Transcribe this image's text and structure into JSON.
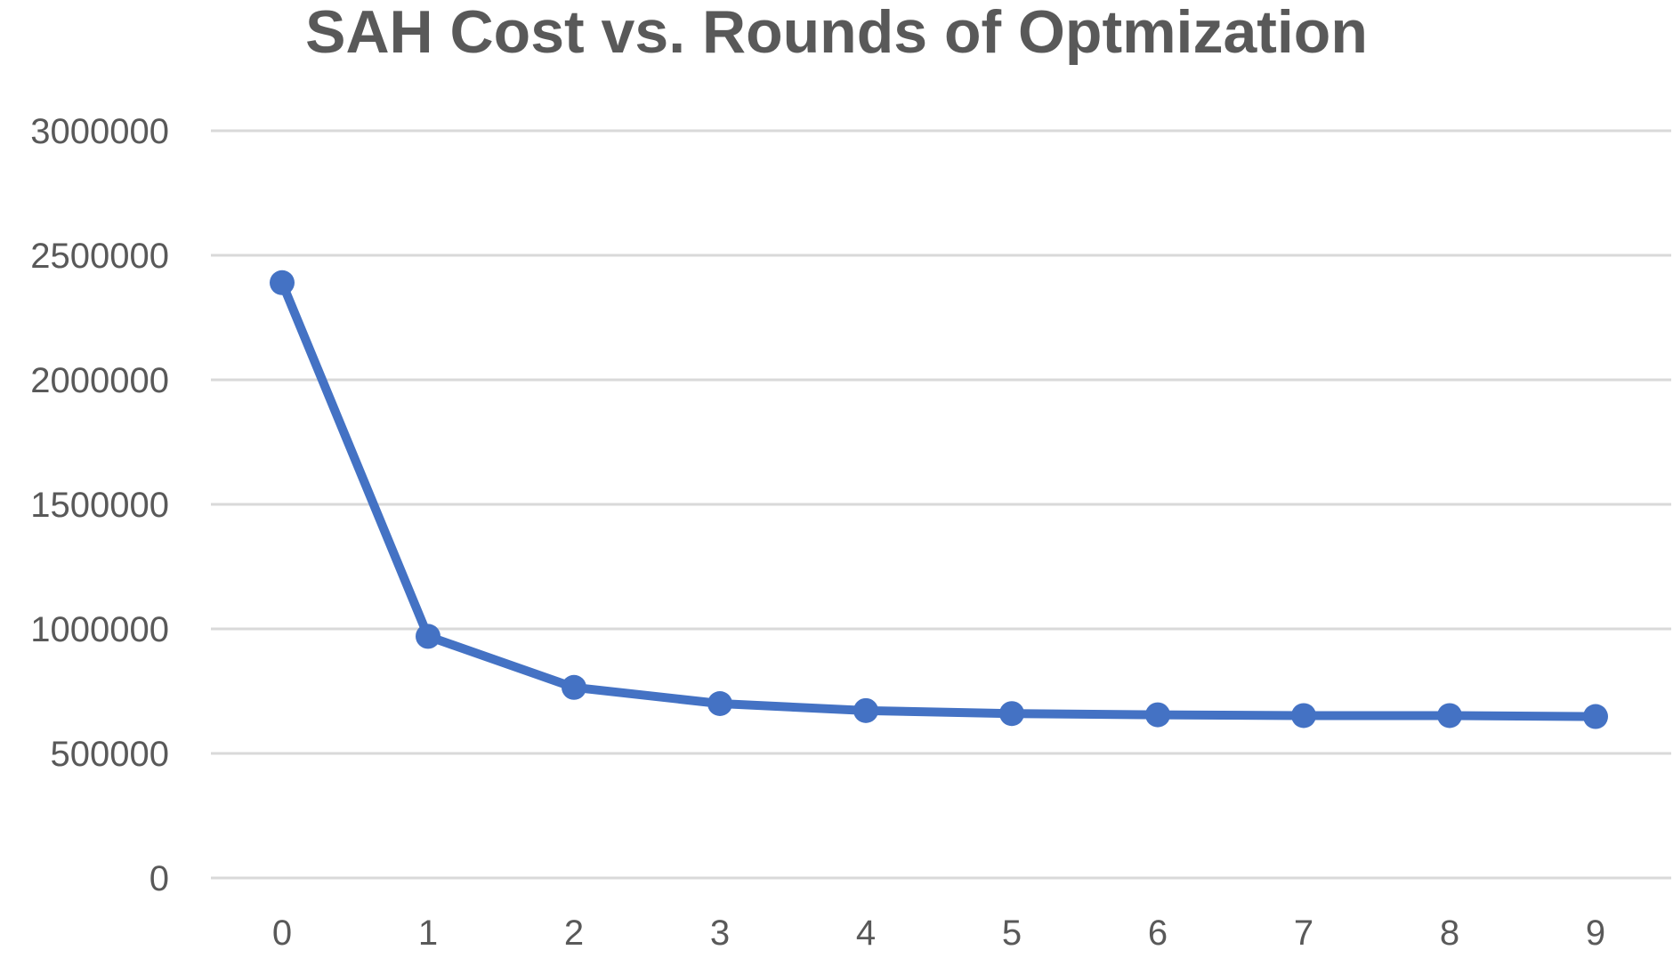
{
  "chart_data": {
    "type": "line",
    "title": "SAH Cost vs. Rounds of Optmization",
    "xlabel": "",
    "ylabel": "",
    "categories": [
      "0",
      "1",
      "2",
      "3",
      "4",
      "5",
      "6",
      "7",
      "8",
      "9"
    ],
    "series": [
      {
        "values": [
          2390000,
          970000,
          765000,
          700000,
          672000,
          660000,
          655000,
          652000,
          652000,
          648000
        ]
      }
    ],
    "ylim": [
      0,
      3000000
    ],
    "yticks": [
      "0",
      "500000",
      "1000000",
      "1500000",
      "2000000",
      "2500000",
      "3000000"
    ],
    "grid": true,
    "legend": "none",
    "colors": {
      "series": "#4472c4",
      "gridline": "#d9d9d9",
      "text": "#595959"
    }
  }
}
